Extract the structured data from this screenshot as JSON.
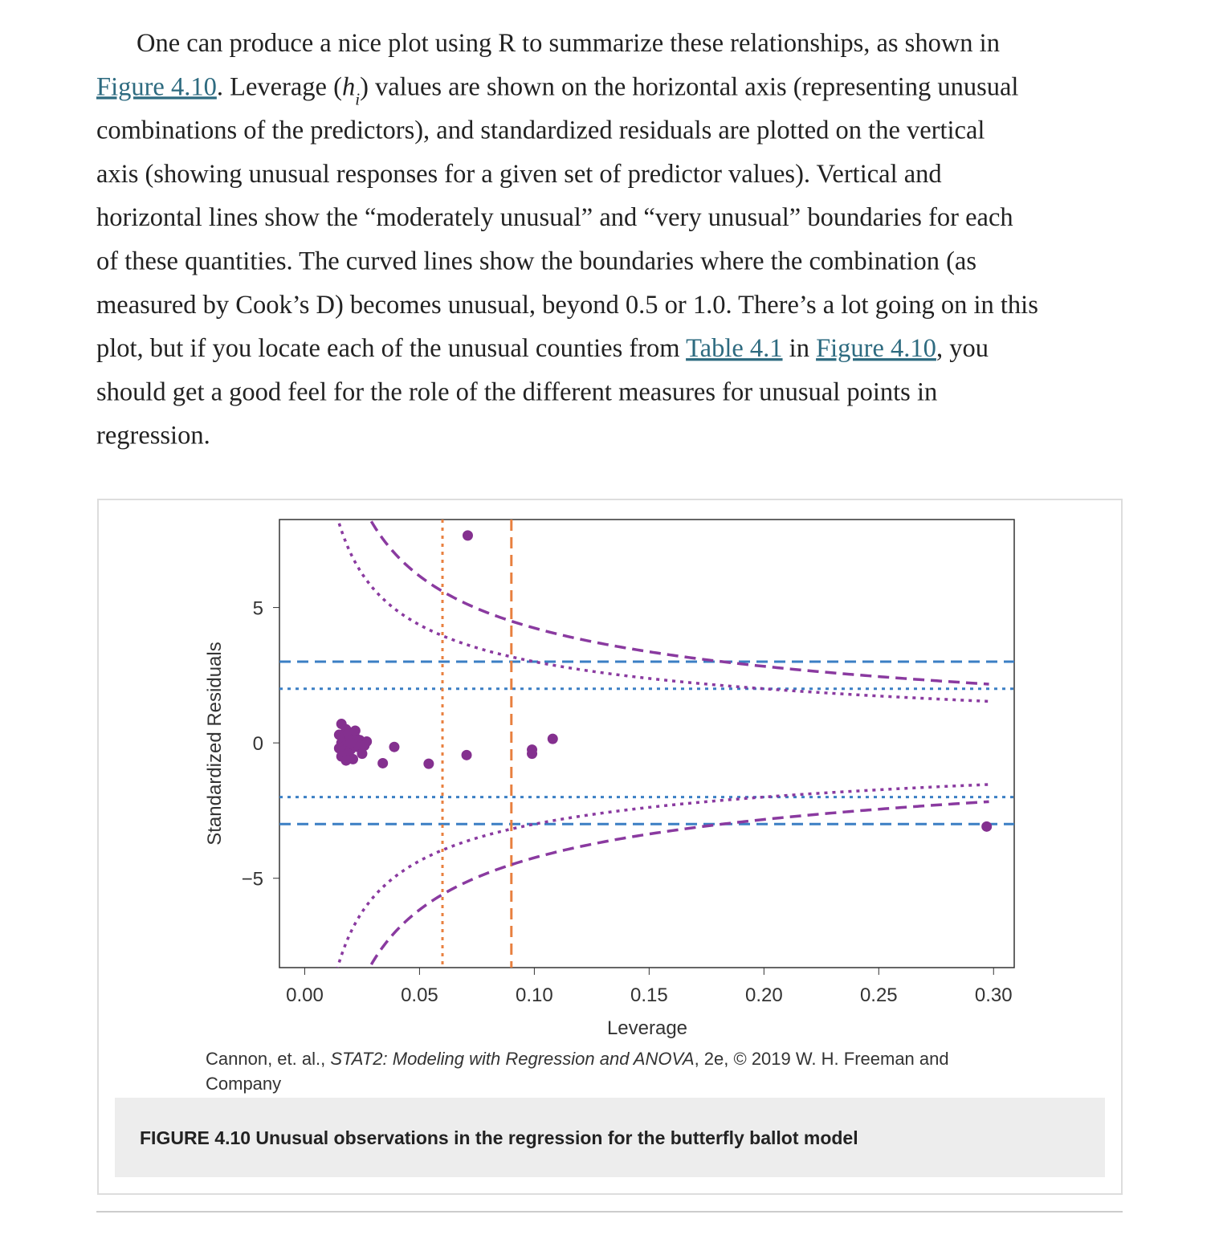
{
  "paragraph": {
    "lines": [
      [
        {
          "text": "One can produce a nice plot using R to summarize these relationships, as shown in"
        }
      ],
      [
        {
          "text": "Figure 4.10",
          "style": "link"
        },
        {
          "text": ". Leverage ("
        },
        {
          "text": "h",
          "style": "math"
        },
        {
          "text": "i",
          "style": "sub"
        },
        {
          "text": ") values are shown on the horizontal axis (representing unusual"
        }
      ],
      [
        {
          "text": "combinations of the predictors), and standardized residuals are plotted on the vertical"
        }
      ],
      [
        {
          "text": "axis (showing unusual responses for a given set of predictor values). Vertical and"
        }
      ],
      [
        {
          "text": "horizontal lines show the “moderately unusual” and “very unusual” boundaries for each"
        }
      ],
      [
        {
          "text": "of these quantities. The curved lines show the boundaries where the combination (as"
        }
      ],
      [
        {
          "text": "measured by Cook’s D) becomes unusual, beyond 0.5 or 1.0. There’s a lot going on in this"
        }
      ],
      [
        {
          "text": "plot, but if you locate each of the unusual counties from "
        },
        {
          "text": "Table 4.1",
          "style": "link"
        },
        {
          "text": " in "
        },
        {
          "text": "Figure 4.10",
          "style": "link"
        },
        {
          "text": ", you"
        }
      ],
      [
        {
          "text": "should get a good feel for the role of the different measures for unusual points in"
        }
      ],
      [
        {
          "text": "regression."
        }
      ]
    ]
  },
  "figure": {
    "chart_data": {
      "type": "scatter",
      "xlabel": "Leverage",
      "ylabel": "Standardized Residuals",
      "xlim": [
        -0.011,
        0.309
      ],
      "ylim": [
        -8.3,
        8.25
      ],
      "xticks": [
        {
          "value": 0,
          "label": "0.00"
        },
        {
          "value": 0.05,
          "label": "0.05"
        },
        {
          "value": 0.1,
          "label": "0.10"
        },
        {
          "value": 0.15,
          "label": "0.15"
        },
        {
          "value": 0.2,
          "label": "0.20"
        },
        {
          "value": 0.25,
          "label": "0.25"
        },
        {
          "value": 0.3,
          "label": "0.30"
        }
      ],
      "yticks": [
        {
          "value": -5,
          "label": "−5"
        },
        0,
        5
      ],
      "x": [
        0.016,
        0.018,
        0.015,
        0.017,
        0.019,
        0.02,
        0.016,
        0.018,
        0.015,
        0.017,
        0.02,
        0.022,
        0.024,
        0.021,
        0.023,
        0.019,
        0.016,
        0.021,
        0.018,
        0.025,
        0.027,
        0.026,
        0.022,
        0.02,
        0.034,
        0.039,
        0.054,
        0.0705,
        0.071,
        0.099,
        0.099,
        0.108,
        0.297
      ],
      "values": [
        0.7,
        0.5,
        0.3,
        0.2,
        0.35,
        0.1,
        0.0,
        -0.1,
        -0.2,
        -0.3,
        -0.25,
        0.2,
        0.1,
        -0.05,
        -0.15,
        -0.4,
        -0.5,
        -0.6,
        -0.65,
        -0.4,
        0.05,
        -0.1,
        0.45,
        0.0,
        -0.75,
        -0.15,
        -0.77,
        -0.45,
        7.66,
        -0.25,
        -0.4,
        0.15,
        -3.09
      ],
      "color": "#84308f",
      "hlines": [
        {
          "value": 3,
          "style": "dashed",
          "color": "#3b7fc4"
        },
        {
          "value": 2,
          "style": "dotted",
          "color": "#3b7fc4"
        },
        {
          "value": -2,
          "style": "dotted",
          "color": "#3b7fc4"
        },
        {
          "value": -3,
          "style": "dashed",
          "color": "#3b7fc4"
        }
      ],
      "vlines": [
        {
          "value": 0.06,
          "style": "dotted",
          "color": "#e8803f"
        },
        {
          "value": 0.09,
          "style": "dashed",
          "color": "#e8803f"
        }
      ],
      "cooks_distance": {
        "levels": [
          {
            "value": 0.5,
            "style": "dotted"
          },
          {
            "value": 1.0,
            "style": "dashed"
          }
        ],
        "p": 2,
        "h_range": [
          0.014,
          0.298
        ],
        "color": "#8a3aa0"
      }
    },
    "credit": {
      "lines": [
        [
          {
            "text": "Cannon, et. al., "
          },
          {
            "text": "STAT2: Modeling with Regression and ANOVA",
            "style": "italic"
          },
          {
            "text": ", 2e, © 2019 W. H. Freeman and"
          }
        ],
        [
          {
            "text": "Company"
          }
        ]
      ]
    },
    "caption": "FIGURE 4.10 Unusual observations in the regression for the butterfly ballot model"
  }
}
